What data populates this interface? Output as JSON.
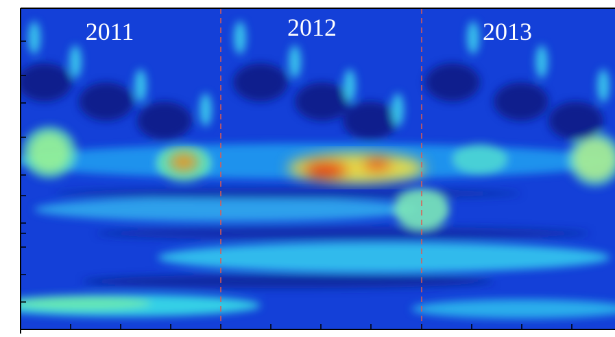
{
  "chart_data": {
    "type": "heatmap",
    "title": "",
    "xlabel": "",
    "ylabel": "",
    "colormap": "jet",
    "year_labels": [
      "2011",
      "2012",
      "2013"
    ],
    "year_boundaries_color": "#e05a4f",
    "grid": false,
    "hotspots": [
      {
        "year": "2012",
        "band": "mid",
        "peak": 1.0
      },
      {
        "year": "2011",
        "band": "mid",
        "peak": 0.65
      },
      {
        "year": "2011",
        "band": "mid-left",
        "peak": 0.55
      },
      {
        "year": "2013",
        "band": "mid-right",
        "peak": 0.6
      }
    ],
    "low_frequency_band_intensity": 0.55
  }
}
